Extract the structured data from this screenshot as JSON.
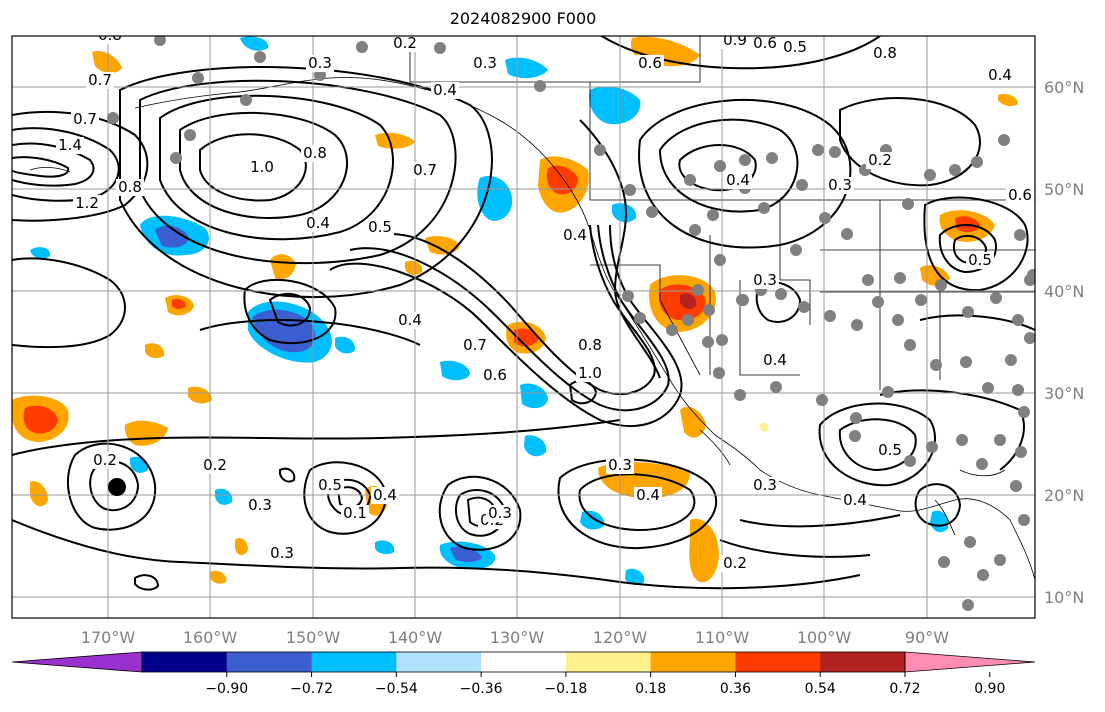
{
  "title": "2024082900 F000",
  "map": {
    "projection": "PlateCarree",
    "lon_range": [
      180,
      80
    ],
    "lat_range": [
      8,
      65
    ],
    "grid": true,
    "lon_ticks": [
      "170°W",
      "160°W",
      "150°W",
      "140°W",
      "130°W",
      "120°W",
      "110°W",
      "100°W",
      "90°W"
    ],
    "lat_ticks": [
      "60°N",
      "50°N",
      "40°N",
      "30°N",
      "20°N",
      "10°N"
    ],
    "contour_labels": [
      "0.8",
      "0.7",
      "0.6",
      "0.2",
      "0.3",
      "0.4",
      "0.9",
      "0.6",
      "0.5",
      "0.8",
      "0.4",
      "0.7",
      "1.4",
      "1.0",
      "0.8",
      "0.7",
      "1.2",
      "0.8",
      "0.4",
      "0.5",
      "0.4",
      "0.7",
      "0.6",
      "0.8",
      "1.0",
      "0.3",
      "0.4",
      "0.3",
      "0.2",
      "0.3",
      "0.4",
      "0.5",
      "0.6",
      "0.4",
      "0.5",
      "0.3",
      "0.4",
      "0.3",
      "0.4",
      "0.2",
      "0.3",
      "0.5",
      "0.1",
      "0.2",
      "0.3",
      "0.4",
      "0.3",
      "0.2",
      "0.2"
    ],
    "shaded_field_colors": {
      "orange": "#ffa500",
      "orange_red": "#ff3c00",
      "dark_red": "#b22222",
      "light_blue": "#00bfff",
      "med_blue": "#3b5fd0",
      "pale_yellow": "#fff08c"
    },
    "station_marker_color": "#808080",
    "storm_marker_color": "#000000"
  },
  "colorbar": {
    "colors": [
      "#9b30d0",
      "#00008b",
      "#3b5fd0",
      "#00bfff",
      "#b0e2ff",
      "#ffffff",
      "#fff08c",
      "#ffa500",
      "#ff3c00",
      "#b22222",
      "#ff8cb4"
    ],
    "tick_labels": [
      "−0.90",
      "−0.72",
      "−0.54",
      "−0.36",
      "−0.18",
      "0.18",
      "0.36",
      "0.54",
      "0.72",
      "0.90"
    ]
  }
}
